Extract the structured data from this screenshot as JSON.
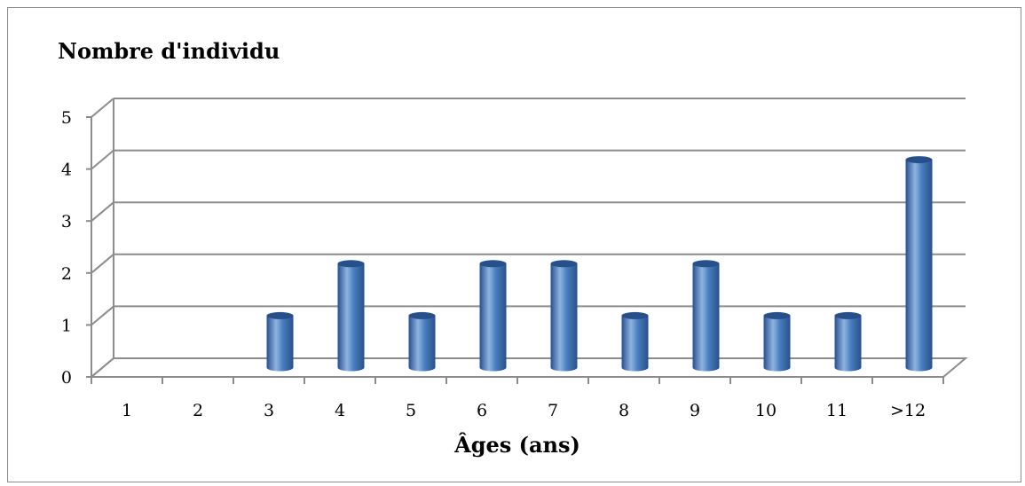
{
  "chart_data": {
    "type": "bar",
    "title": "",
    "ylabel": "Nombre d'individu",
    "xlabel": "Âges (ans)",
    "categories": [
      "1",
      "2",
      "3",
      "4",
      "5",
      "6",
      "7",
      "8",
      "9",
      "10",
      "11",
      ">12"
    ],
    "values": [
      0,
      0,
      1,
      2,
      1,
      2,
      2,
      1,
      2,
      1,
      1,
      4
    ],
    "ylim": [
      0,
      5
    ],
    "yticks": [
      "0",
      "1",
      "2",
      "3",
      "4",
      "5"
    ],
    "grid": true,
    "legend": "none",
    "style": "3d-cylinder",
    "colors": {
      "bar": "#4a7ec0",
      "bar_dark": "#27508a",
      "bar_light": "#8fb4e3",
      "grid": "#8c8c8c"
    }
  }
}
